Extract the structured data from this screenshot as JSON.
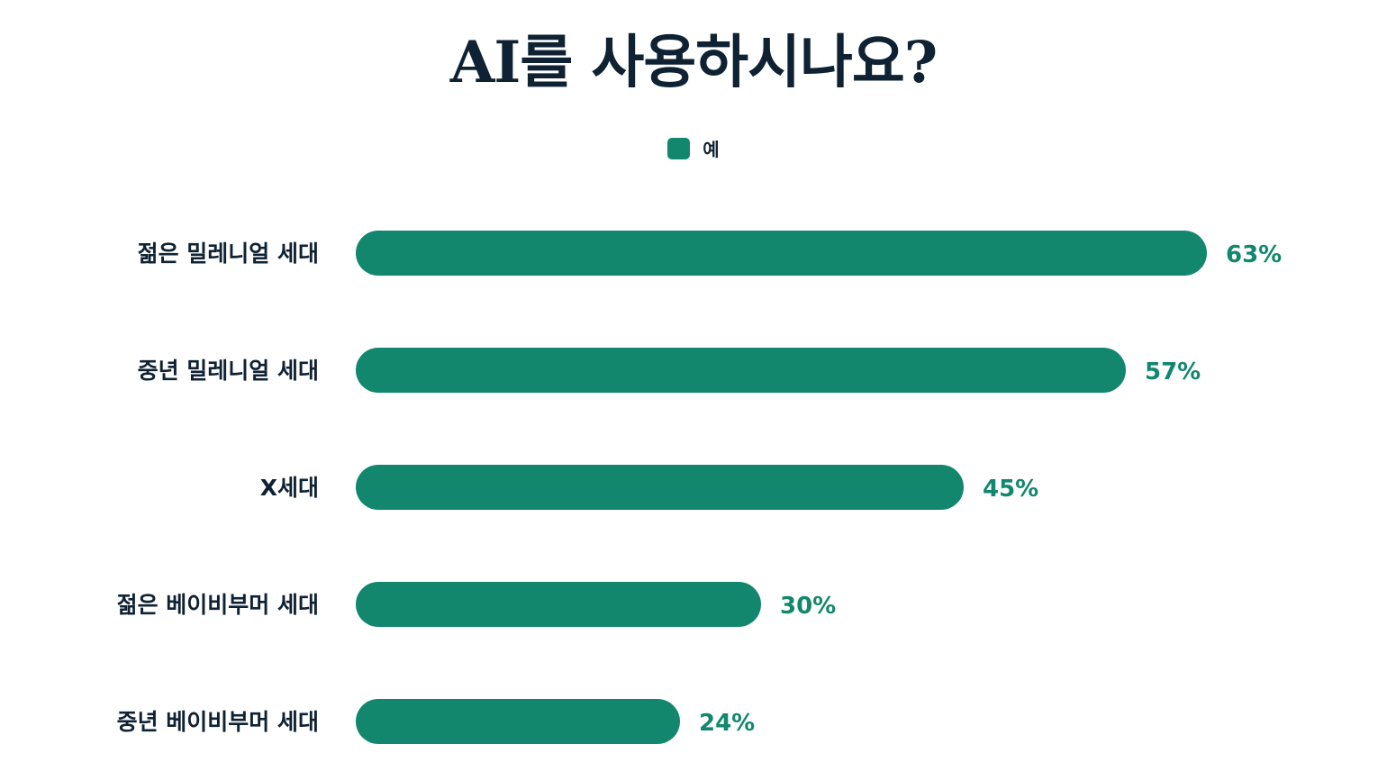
{
  "chart_data": {
    "type": "bar",
    "orientation": "horizontal",
    "title": "AI를 사용하시나요?",
    "categories": [
      "젊은 밀레니얼 세대",
      "중년 밀레니얼 세대",
      "X세대",
      "젊은 베이비부머 세대",
      "중년 베이비부머 세대"
    ],
    "series": [
      {
        "name": "예",
        "values": [
          63,
          57,
          45,
          30,
          24
        ],
        "color": "#12876e"
      }
    ],
    "value_labels": [
      "63%",
      "57%",
      "45%",
      "30%",
      "24%"
    ],
    "unit": "%",
    "legend": "top-center",
    "grid": false,
    "xlabel": "",
    "ylabel": ""
  }
}
